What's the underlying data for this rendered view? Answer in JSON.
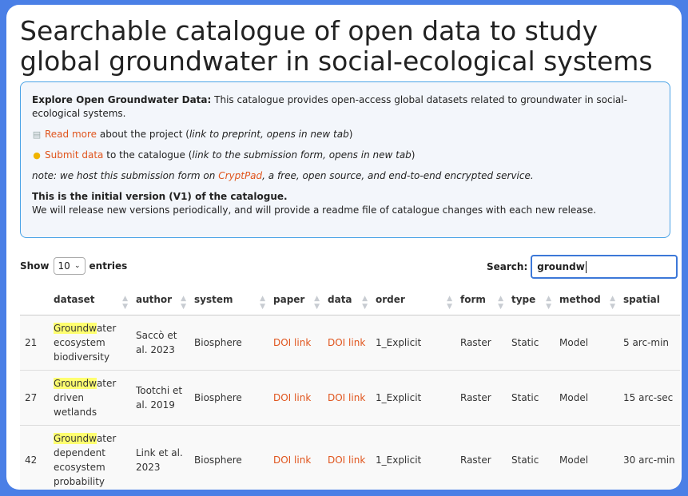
{
  "page": {
    "title": "Searchable catalogue of open data to study global groundwater in social-ecological systems"
  },
  "info": {
    "explore_label": "Explore Open Groundwater Data:",
    "explore_text": " This catalogue provides open-access global datasets related to groundwater in social-ecological systems.",
    "read_more_icon": "notepad-icon",
    "read_more_link": "Read more",
    "read_more_text": " about the project (",
    "read_more_note": "link to preprint, opens in new tab",
    "submit_icon": "lightbulb-icon",
    "submit_link": "Submit data",
    "submit_text": " to the catalogue (",
    "submit_note": "link to the submission form, opens in new tab",
    "host_note_a": "note: we host this submission form on ",
    "host_link": "CryptPad",
    "host_note_b": ", a free, open source, and end-to-end encrypted service.",
    "version_title": "This is the initial version (V1) of the catalogue.",
    "version_text": "We will release new versions periodically, and will provide a readme file of catalogue changes with each new release."
  },
  "controls": {
    "show_label": "Show",
    "entries_value": "10",
    "entries_label": "entries",
    "search_label": "Search:",
    "search_value": "groundw"
  },
  "table": {
    "columns": [
      "",
      "dataset",
      "author",
      "system",
      "paper",
      "data",
      "order",
      "form",
      "type",
      "method",
      "spatial"
    ],
    "rows": [
      {
        "id": "21",
        "dataset_hl": "Groundw",
        "dataset_rest": "ater ecosystem biodiversity",
        "author": "Saccò et al. 2023",
        "system": "Biosphere",
        "paper": "DOI link",
        "data": "DOI link",
        "order": "1_Explicit",
        "form": "Raster",
        "type": "Static",
        "method": "Model",
        "spatial": "5 arc-min"
      },
      {
        "id": "27",
        "dataset_hl": "Groundw",
        "dataset_rest": "ater driven wetlands",
        "author": "Tootchi et al. 2019",
        "system": "Biosphere",
        "paper": "DOI link",
        "data": "DOI link",
        "order": "1_Explicit",
        "form": "Raster",
        "type": "Static",
        "method": "Model",
        "spatial": "15 arc-sec"
      },
      {
        "id": "42",
        "dataset_hl": "Groundw",
        "dataset_rest": "ater dependent ecosystem probability",
        "author": "Link et al. 2023",
        "system": "Biosphere",
        "paper": "DOI link",
        "data": "DOI link",
        "order": "1_Explicit",
        "form": "Raster",
        "type": "Static",
        "method": "Model",
        "spatial": "30 arc-min"
      }
    ]
  }
}
